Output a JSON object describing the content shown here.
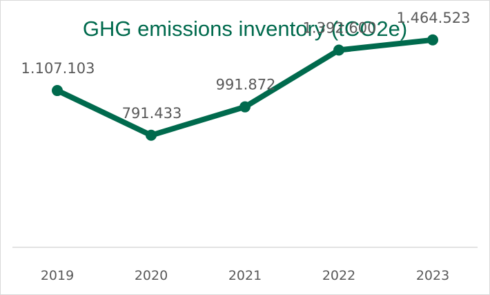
{
  "chart_data": {
    "type": "line",
    "title": "GHG emissions inventory (tCO2e)",
    "xlabel": "",
    "ylabel": "",
    "categories": [
      "2019",
      "2020",
      "2021",
      "2022",
      "2023"
    ],
    "series": [
      {
        "values": [
          1107103,
          791433,
          991872,
          1392600,
          1464523
        ],
        "labels": [
          "1.107.103",
          "791.433",
          "991.872",
          "1.392.600",
          "1.464.523"
        ]
      }
    ],
    "ylim": [
      0,
      1600000
    ],
    "grid": false,
    "legend": "none",
    "colors": {
      "line": "#006a4d",
      "title": "#006a4d",
      "text": "#595959",
      "axis": "#d9d9d9"
    }
  }
}
